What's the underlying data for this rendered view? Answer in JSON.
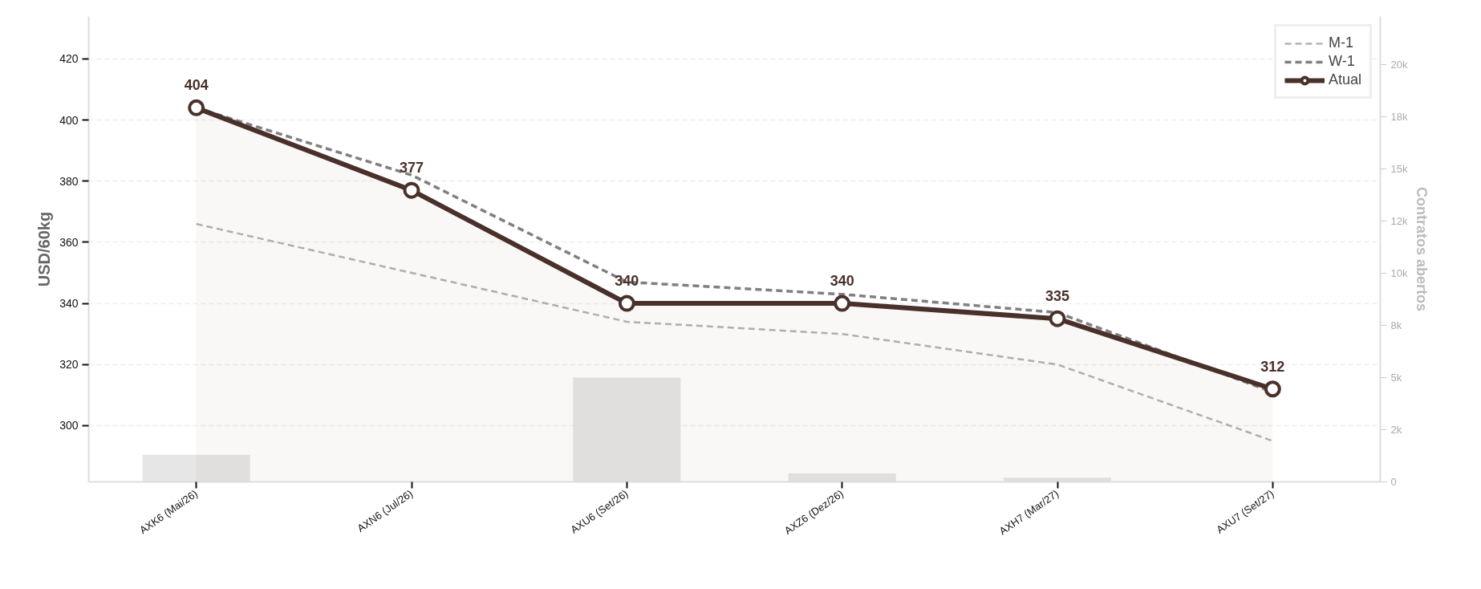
{
  "chart_data": {
    "type": "line",
    "categories": [
      "AXK6 (Mai/26)",
      "AXN6 (Jul/26)",
      "AXU6 (Set/26)",
      "AXZ6 (Dez/26)",
      "AXH7 (Mar/27)",
      "AXU7 (Set/27)"
    ],
    "ylabel": "USD/60kg",
    "y2label": "Contratos abertos",
    "ylim": [
      281.6,
      433.9
    ],
    "yticks": [
      300,
      320,
      340,
      360,
      380,
      400,
      420
    ],
    "y2lim": [
      0,
      22300
    ],
    "y2ticks": [
      0,
      {
        "value": 2500,
        "label": "2k"
      },
      {
        "value": 5000,
        "label": "5k"
      },
      {
        "value": 7500,
        "label": "8k"
      },
      {
        "value": 10000,
        "label": "10k"
      },
      {
        "value": 12500,
        "label": "12k"
      },
      {
        "value": 15000,
        "label": "15k"
      },
      {
        "value": 17500,
        "label": "18k"
      },
      {
        "value": 20000,
        "label": "20k"
      }
    ],
    "grid": "y",
    "legend": "top right",
    "series": [
      {
        "type": "bar",
        "axis": "y2",
        "color": "#e6e6e6",
        "values": [
          1300,
          0,
          5000,
          400,
          200,
          0
        ]
      },
      {
        "name": "M-1",
        "color": "#b3b3b3",
        "line_style": "dashed",
        "marker": "none",
        "values": [
          366,
          350,
          334,
          330,
          320,
          295
        ]
      },
      {
        "name": "W-1",
        "color": "#808080",
        "line_style": "dashed",
        "marker": "none",
        "values": [
          404,
          382,
          347,
          343,
          337,
          311
        ]
      },
      {
        "type": "area",
        "name": "Atual",
        "color": "#4a302a",
        "line_style": "solid",
        "marker": "circle",
        "values": [
          404,
          377,
          340,
          340,
          335,
          312
        ],
        "value_labels": [
          "404",
          "377",
          "340",
          "340",
          "335",
          "312"
        ]
      }
    ]
  }
}
